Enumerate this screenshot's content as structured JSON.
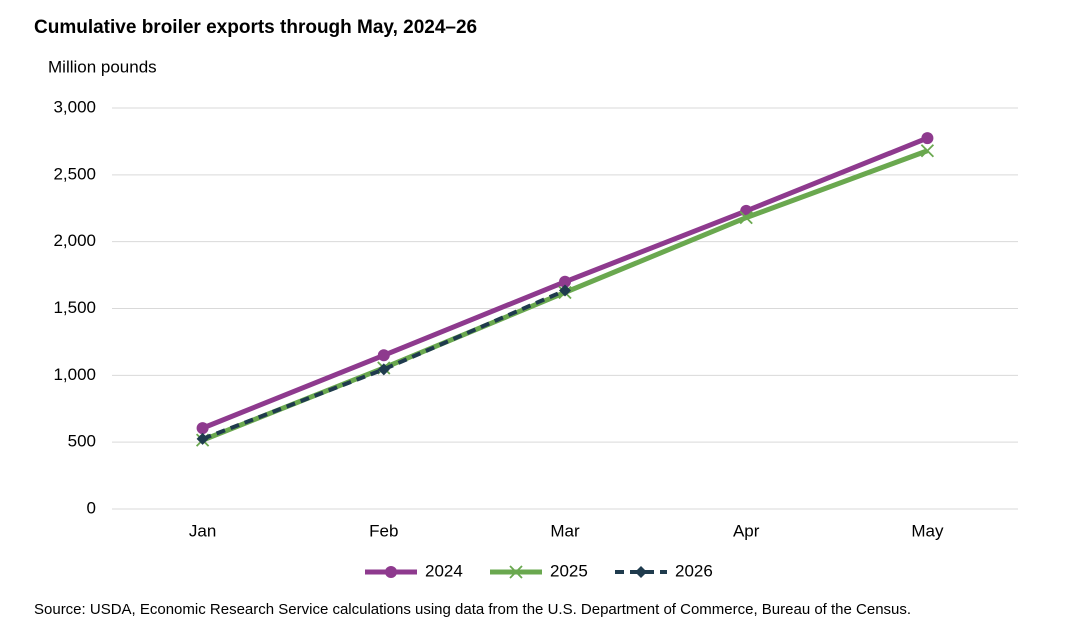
{
  "chart_data": {
    "type": "line",
    "title": "Cumulative broiler exports through May, 2024–26",
    "y_label": "Million pounds",
    "source": "Source: USDA, Economic Research Service calculations using data from the U.S. Department of Commerce, Bureau of the Census.",
    "categories": [
      "Jan",
      "Feb",
      "Mar",
      "Apr",
      "May"
    ],
    "series": [
      {
        "name": "2024",
        "color": "#8e3a8e",
        "marker": "circle",
        "dashed": false,
        "values": [
          605,
          1150,
          1700,
          2230,
          2775
        ]
      },
      {
        "name": "2025",
        "color": "#6aa84f",
        "marker": "x",
        "dashed": false,
        "values": [
          515,
          1055,
          1620,
          2180,
          2680
        ]
      },
      {
        "name": "2026",
        "color": "#1f3b4d",
        "marker": "diamond",
        "dashed": true,
        "values": [
          525,
          1045,
          1635,
          null,
          null
        ]
      }
    ],
    "ylim": [
      0,
      3000
    ],
    "yticks": [
      0,
      500,
      {
        "value": 1000,
        "label": "1,000"
      },
      {
        "value": 1500,
        "label": "1,500"
      },
      {
        "value": 2000,
        "label": "2,000"
      },
      {
        "value": 2500,
        "label": "2,500"
      },
      {
        "value": 3000,
        "label": "3,000"
      }
    ],
    "grid": true,
    "legend": "bottom"
  }
}
